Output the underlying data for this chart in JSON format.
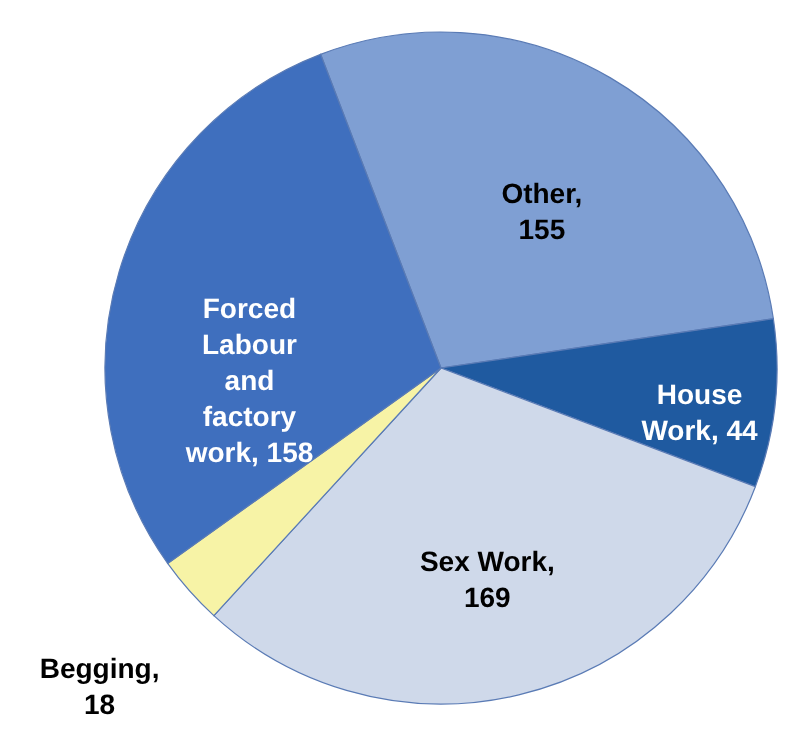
{
  "chart_data": {
    "type": "pie",
    "categories": [
      "Other, 155",
      "House Work, 44",
      "Sex Work, 169",
      "Begging, 18",
      "Forced Labour and factory work, 158"
    ],
    "values": [
      155,
      44,
      169,
      18,
      158
    ],
    "colors": [
      "#7f9fd3",
      "#1f5aa0",
      "#cfd9ea",
      "#f7f3a6",
      "#3f6fbe"
    ]
  }
}
